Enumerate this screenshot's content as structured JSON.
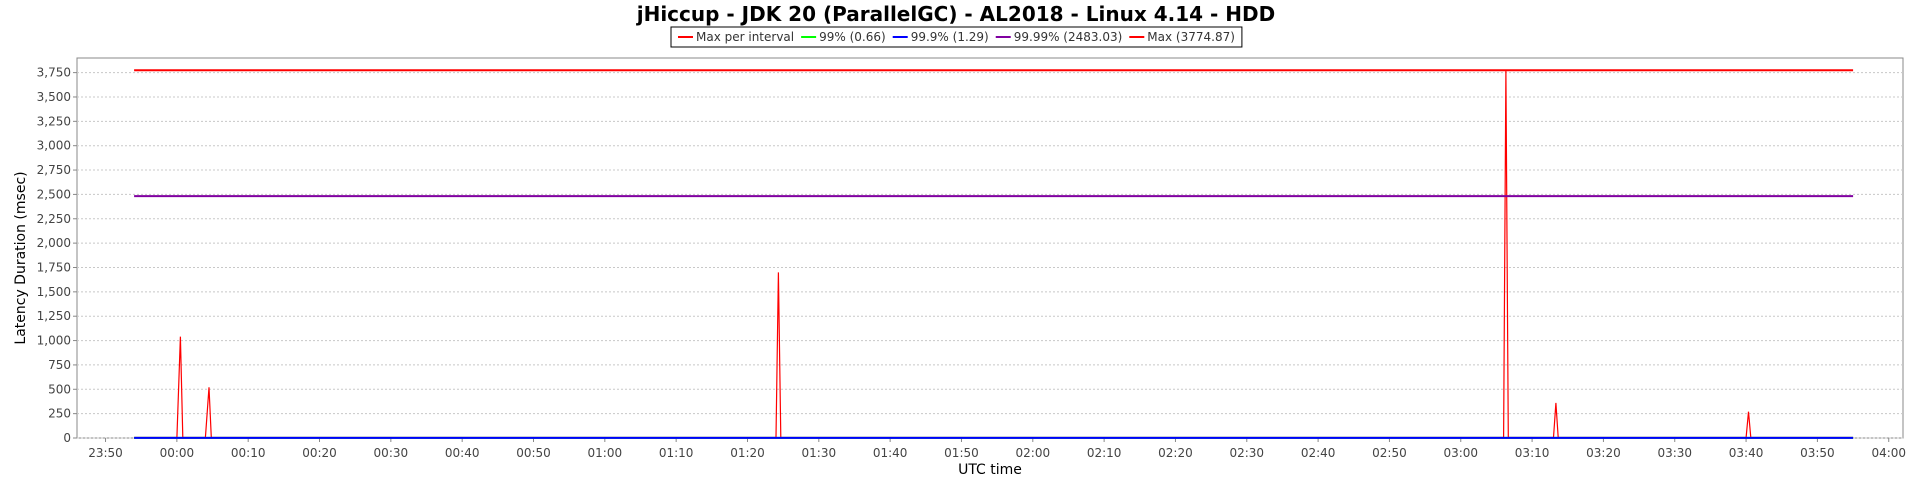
{
  "chart_data": {
    "type": "line",
    "title": "jHiccup - JDK 20 (ParallelGC) - AL2018 - Linux 4.14 - HDD",
    "xlabel": "UTC time",
    "ylabel": "Latency Duration (msec)",
    "x_ticks": [
      "23:50",
      "00:00",
      "00:10",
      "00:20",
      "00:30",
      "00:40",
      "00:50",
      "01:00",
      "01:10",
      "01:20",
      "01:30",
      "01:40",
      "01:50",
      "02:00",
      "02:10",
      "02:20",
      "02:30",
      "02:40",
      "02:50",
      "03:00",
      "03:10",
      "03:20",
      "03:30",
      "03:40",
      "03:50",
      "04:00"
    ],
    "y_ticks": [
      "0",
      "250",
      "500",
      "750",
      "1,000",
      "1,250",
      "1,500",
      "1,750",
      "2,000",
      "2,250",
      "2,500",
      "2,750",
      "3,000",
      "3,250",
      "3,500",
      "3,750"
    ],
    "ylim": [
      0,
      3900
    ],
    "xlim": [
      "23:46",
      "04:02"
    ],
    "grid": true,
    "legend_position": "top-center",
    "series": [
      {
        "name": "Max per interval",
        "color": "#ff0000",
        "x": [
          "23:54",
          "00:00",
          "00:00:30",
          "00:00:50",
          "00:04",
          "00:04:30",
          "00:04:50",
          "01:24",
          "01:24:20",
          "01:24:40",
          "03:06",
          "03:06:20",
          "03:06:40",
          "03:13",
          "03:13:20",
          "03:13:40",
          "03:40",
          "03:40:20",
          "03:40:40",
          "03:55"
        ],
        "values": [
          5,
          5,
          1040,
          5,
          5,
          520,
          5,
          5,
          1700,
          5,
          5,
          3775,
          5,
          5,
          360,
          5,
          5,
          270,
          5,
          5
        ]
      },
      {
        "name": "99% (0.66)",
        "color": "#00ff00",
        "x": [
          "23:54",
          "03:55"
        ],
        "values": [
          0.66,
          0.66
        ]
      },
      {
        "name": "99.9% (1.29)",
        "color": "#0000ff",
        "x": [
          "23:54",
          "03:55"
        ],
        "values": [
          1.29,
          1.29
        ]
      },
      {
        "name": "99.99% (2483.03)",
        "color": "#8000a0",
        "x": [
          "23:54",
          "03:55"
        ],
        "values": [
          2483.03,
          2483.03
        ]
      },
      {
        "name": "Max (3774.87)",
        "color": "#ff0000",
        "x": [
          "23:54",
          "03:55"
        ],
        "values": [
          3774.87,
          3774.87
        ]
      }
    ]
  }
}
